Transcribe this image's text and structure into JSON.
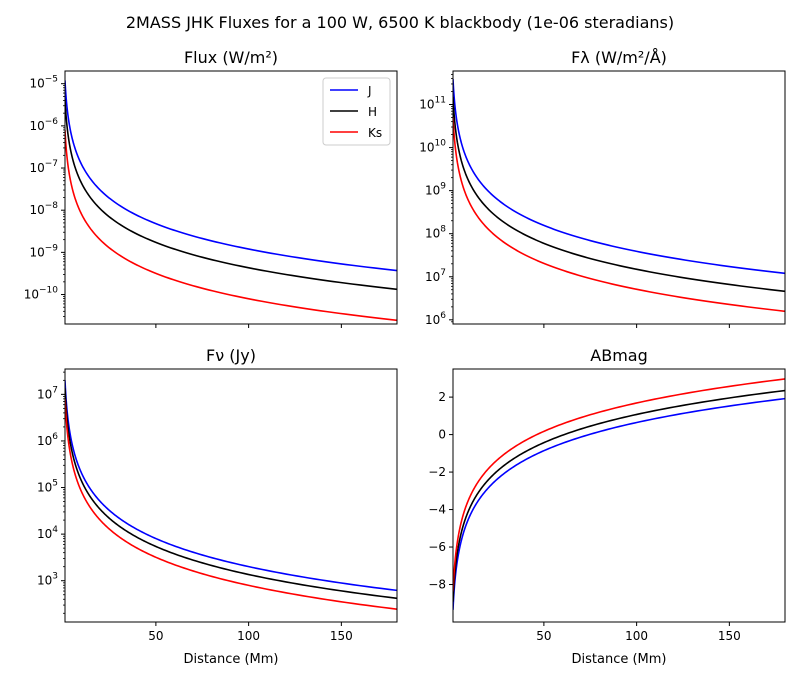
{
  "suptitle": "2MASS JHK Fluxes for a 100 W, 6500 K blackbody (1e-06 steradians)",
  "colors": {
    "J": "#0000ff",
    "H": "#000000",
    "Ks": "#ff0000"
  },
  "chart_data": [
    {
      "type": "line",
      "title": "Flux (W/m²)",
      "xlabel": "",
      "ylabel": "",
      "yscale": "log",
      "xlim": [
        1,
        180
      ],
      "ylim": [
        2e-11,
        2e-05
      ],
      "xticks": [
        50,
        100,
        150
      ],
      "yticks": [
        1e-10,
        1e-09,
        1e-08,
        1e-07,
        1e-06,
        1e-05
      ],
      "ytick_labels": [
        [
          "10",
          "−10"
        ],
        [
          "10",
          "−9"
        ],
        [
          "10",
          "−8"
        ],
        [
          "10",
          "−7"
        ],
        [
          "10",
          "−6"
        ],
        [
          "10",
          "−5"
        ]
      ],
      "legend": "upper right",
      "series": [
        {
          "name": "J",
          "x": [
            1,
            180
          ],
          "y": [
            1.2e-05,
            3.7e-10
          ]
        },
        {
          "name": "H",
          "x": [
            1,
            180
          ],
          "y": [
            4.3e-06,
            1.33e-10
          ]
        },
        {
          "name": "Ks",
          "x": [
            1,
            180
          ],
          "y": [
            7.9e-07,
            2.45e-11
          ]
        }
      ]
    },
    {
      "type": "line",
      "title": "Fλ (W/m²/Å)",
      "xlabel": "",
      "ylabel": "",
      "yscale": "log",
      "xlim": [
        1,
        180
      ],
      "ylim": [
        800000.0,
        600000000000.0
      ],
      "xticks": [
        50,
        100,
        150
      ],
      "yticks": [
        1000000.0,
        10000000.0,
        100000000.0,
        1000000000.0,
        10000000000.0,
        100000000000.0
      ],
      "ytick_labels": [
        [
          "10",
          "6"
        ],
        [
          "10",
          "7"
        ],
        [
          "10",
          "8"
        ],
        [
          "10",
          "9"
        ],
        [
          "10",
          "10"
        ],
        [
          "10",
          "11"
        ]
      ],
      "series": [
        {
          "name": "J",
          "x": [
            1,
            180
          ],
          "y": [
            390000000000.0,
            12000000.0
          ]
        },
        {
          "name": "H",
          "x": [
            1,
            180
          ],
          "y": [
            150000000000.0,
            4600000.0
          ]
        },
        {
          "name": "Ks",
          "x": [
            1,
            180
          ],
          "y": [
            51000000000.0,
            1580000.0
          ]
        }
      ]
    },
    {
      "type": "line",
      "title": "Fν (Jy)",
      "xlabel": "Distance (Mm)",
      "ylabel": "",
      "yscale": "log",
      "xlim": [
        1,
        180
      ],
      "ylim": [
        130.0,
        35000000.0
      ],
      "xticks": [
        50,
        100,
        150
      ],
      "yticks": [
        1000.0,
        10000.0,
        100000.0,
        1000000.0,
        10000000.0
      ],
      "ytick_labels": [
        [
          "10",
          "3"
        ],
        [
          "10",
          "4"
        ],
        [
          "10",
          "5"
        ],
        [
          "10",
          "6"
        ],
        [
          "10",
          "7"
        ]
      ],
      "series": [
        {
          "name": "J",
          "x": [
            1,
            180
          ],
          "y": [
            20000000.0,
            620.0
          ]
        },
        {
          "name": "H",
          "x": [
            1,
            180
          ],
          "y": [
            13500000.0,
            420.0
          ]
        },
        {
          "name": "Ks",
          "x": [
            1,
            180
          ],
          "y": [
            8000000.0,
            245.0
          ]
        }
      ]
    },
    {
      "type": "line",
      "title": "ABmag",
      "xlabel": "Distance (Mm)",
      "ylabel": "",
      "yscale": "linear",
      "xlim": [
        1,
        180
      ],
      "ylim": [
        -10,
        3.5
      ],
      "xticks": [
        50,
        100,
        150
      ],
      "yticks": [
        -8,
        -6,
        -4,
        -2,
        0,
        2
      ],
      "ytick_labels": [
        [
          "−8",
          ""
        ],
        [
          "−6",
          ""
        ],
        [
          "−4",
          ""
        ],
        [
          "−2",
          ""
        ],
        [
          "0",
          ""
        ],
        [
          "2",
          ""
        ]
      ],
      "series": [
        {
          "name": "J",
          "x": [
            1,
            180
          ],
          "y": [
            -9.35,
            1.92
          ]
        },
        {
          "name": "H",
          "x": [
            1,
            180
          ],
          "y": [
            -8.92,
            2.35
          ]
        },
        {
          "name": "Ks",
          "x": [
            1,
            180
          ],
          "y": [
            -8.37,
            2.97
          ]
        }
      ]
    }
  ]
}
